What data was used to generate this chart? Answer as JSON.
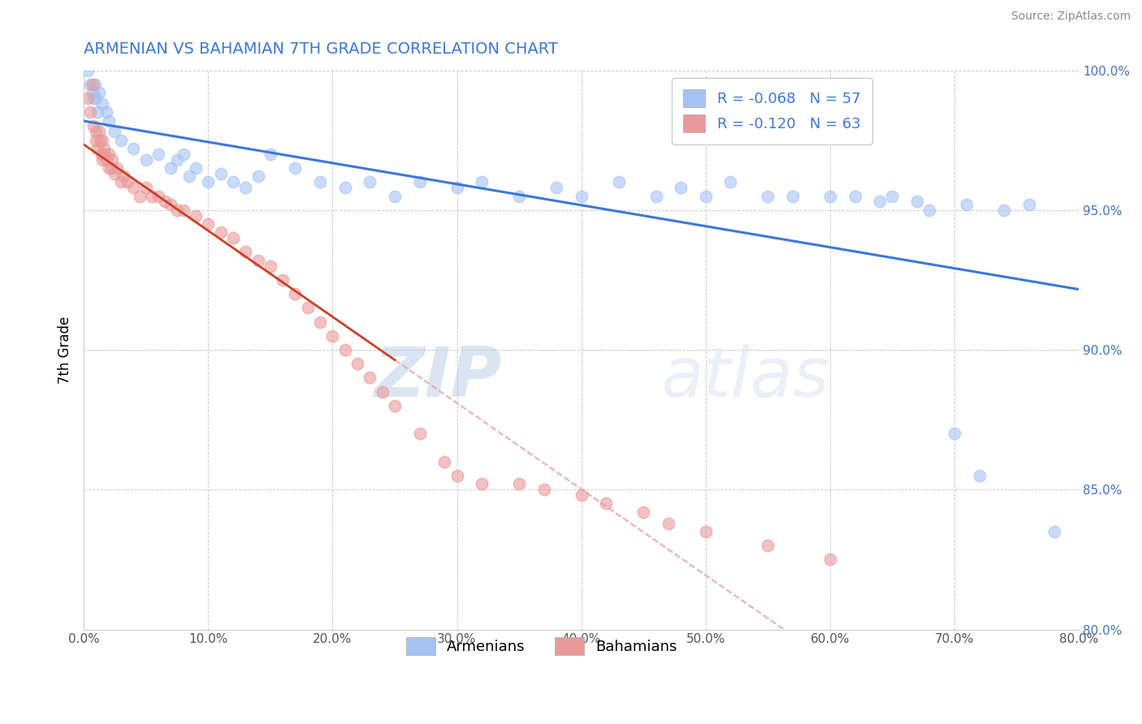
{
  "title": "ARMENIAN VS BAHAMIAN 7TH GRADE CORRELATION CHART",
  "source": "Source: ZipAtlas.com",
  "ylabel": "7th Grade",
  "xlim": [
    0.0,
    80.0
  ],
  "ylim": [
    80.0,
    100.0
  ],
  "x_ticks": [
    0.0,
    10.0,
    20.0,
    30.0,
    40.0,
    50.0,
    60.0,
    70.0,
    80.0
  ],
  "y_ticks": [
    80.0,
    85.0,
    90.0,
    95.0,
    100.0
  ],
  "r_armenian": -0.068,
  "n_armenian": 57,
  "r_bahamian": -0.12,
  "n_bahamian": 63,
  "armenian_color": "#a4c2f4",
  "bahamian_color": "#ea9999",
  "armenian_line_color": "#3c78d8",
  "bahamian_line_color": "#cc4125",
  "background_color": "#ffffff",
  "grid_color": "#cccccc",
  "watermark_zip": "ZIP",
  "watermark_atlas": "atlas",
  "armenian_x": [
    0.3,
    0.5,
    0.7,
    0.8,
    0.9,
    1.0,
    1.1,
    1.2,
    1.5,
    1.8,
    2.0,
    2.5,
    3.0,
    4.0,
    5.0,
    6.0,
    7.0,
    7.5,
    8.0,
    8.5,
    9.0,
    10.0,
    11.0,
    12.0,
    13.0,
    14.0,
    15.0,
    17.0,
    19.0,
    21.0,
    23.0,
    25.0,
    27.0,
    30.0,
    32.0,
    35.0,
    38.0,
    40.0,
    43.0,
    46.0,
    48.0,
    50.0,
    52.0,
    55.0,
    57.0,
    60.0,
    62.0,
    64.0,
    65.0,
    67.0,
    68.0,
    70.0,
    71.0,
    72.0,
    74.0,
    76.0,
    78.0
  ],
  "armenian_y": [
    100.0,
    99.5,
    99.2,
    99.0,
    99.5,
    99.0,
    98.5,
    99.2,
    98.8,
    98.5,
    98.2,
    97.8,
    97.5,
    97.2,
    96.8,
    97.0,
    96.5,
    96.8,
    97.0,
    96.2,
    96.5,
    96.0,
    96.3,
    96.0,
    95.8,
    96.2,
    97.0,
    96.5,
    96.0,
    95.8,
    96.0,
    95.5,
    96.0,
    95.8,
    96.0,
    95.5,
    95.8,
    95.5,
    96.0,
    95.5,
    95.8,
    95.5,
    96.0,
    95.5,
    95.5,
    95.5,
    95.5,
    95.3,
    95.5,
    95.3,
    95.0,
    87.0,
    95.2,
    85.5,
    95.0,
    95.2,
    83.5
  ],
  "bahamian_x": [
    0.3,
    0.5,
    0.7,
    0.8,
    1.0,
    1.0,
    1.1,
    1.2,
    1.3,
    1.4,
    1.5,
    1.5,
    1.6,
    1.7,
    1.8,
    2.0,
    2.0,
    2.2,
    2.3,
    2.5,
    2.7,
    3.0,
    3.2,
    3.5,
    4.0,
    4.5,
    5.0,
    5.5,
    6.0,
    6.5,
    7.0,
    7.5,
    8.0,
    9.0,
    10.0,
    11.0,
    12.0,
    13.0,
    14.0,
    15.0,
    16.0,
    17.0,
    18.0,
    19.0,
    20.0,
    21.0,
    22.0,
    23.0,
    24.0,
    25.0,
    27.0,
    29.0,
    30.0,
    32.0,
    35.0,
    37.0,
    40.0,
    42.0,
    45.0,
    47.0,
    50.0,
    55.0,
    60.0
  ],
  "bahamian_y": [
    99.0,
    98.5,
    99.5,
    98.0,
    97.5,
    97.8,
    97.2,
    97.8,
    97.5,
    97.0,
    97.5,
    96.8,
    97.2,
    97.0,
    96.8,
    96.5,
    97.0,
    96.5,
    96.8,
    96.3,
    96.5,
    96.0,
    96.2,
    96.0,
    95.8,
    95.5,
    95.8,
    95.5,
    95.5,
    95.3,
    95.2,
    95.0,
    95.0,
    94.8,
    94.5,
    94.2,
    94.0,
    93.5,
    93.2,
    93.0,
    92.5,
    92.0,
    91.5,
    91.0,
    90.5,
    90.0,
    89.5,
    89.0,
    88.5,
    88.0,
    87.0,
    86.0,
    85.5,
    85.2,
    85.2,
    85.0,
    84.8,
    84.5,
    84.2,
    83.8,
    83.5,
    83.0,
    82.5
  ]
}
